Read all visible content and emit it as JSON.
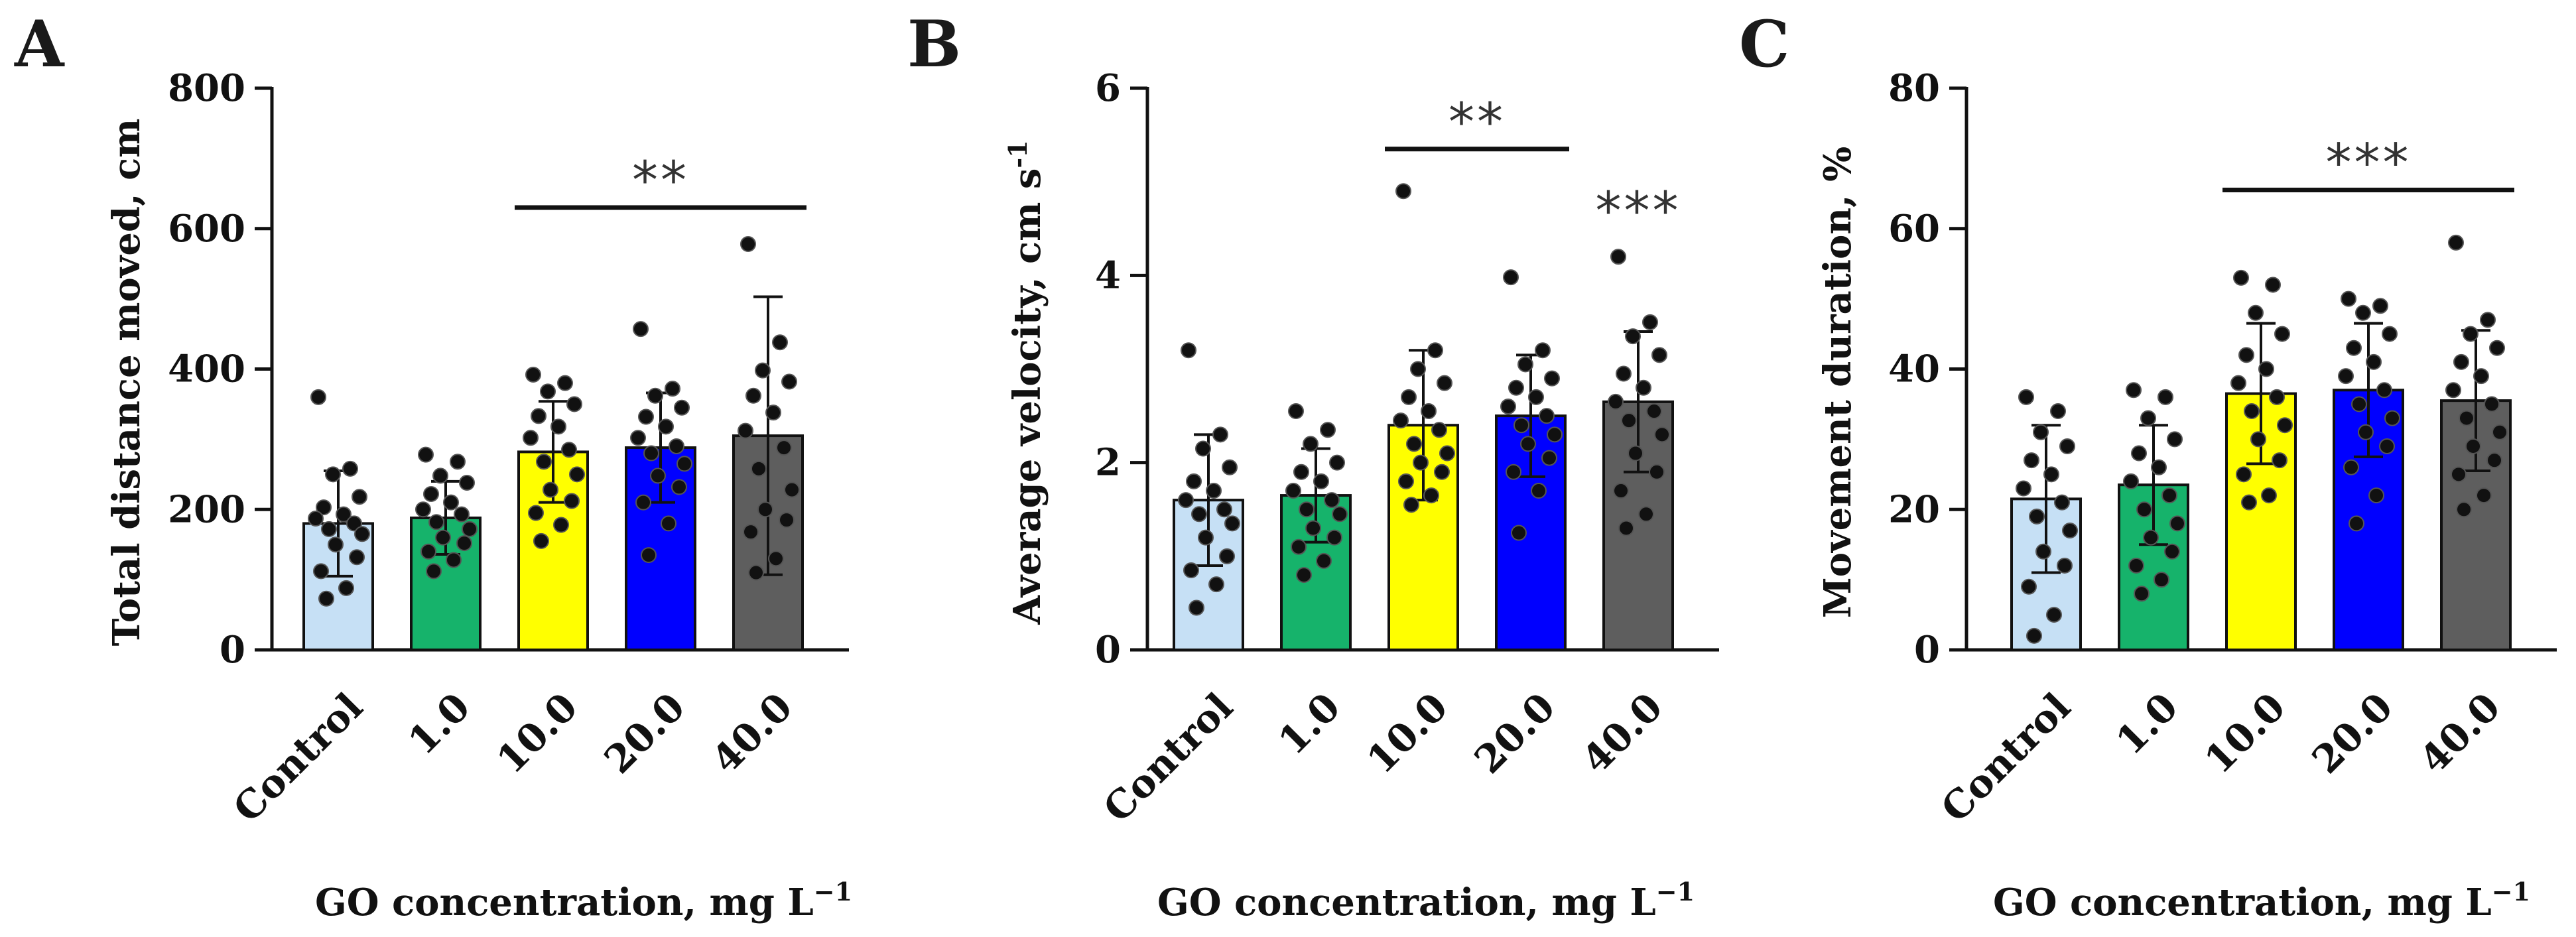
{
  "figure": {
    "xlabel": "GO concentration, mg L",
    "xlabel_sup": "−1"
  },
  "chart_data": [
    {
      "type": "bar",
      "panel": "A",
      "ylabel": "Total distance moved, cm",
      "ylim": [
        0,
        800
      ],
      "yticks": [
        "0",
        "200",
        "400",
        "600",
        "800"
      ],
      "categories": [
        "Control",
        "1.0",
        "10.0",
        "20.0",
        "40.0"
      ],
      "colors": [
        "#c6e0f5",
        "#16b36b",
        "#ffff00",
        "#0000ff",
        "#5e5e5e"
      ],
      "values": [
        180,
        188,
        282,
        288,
        305
      ],
      "sd": [
        75,
        52,
        72,
        78,
        198
      ],
      "points": [
        [
          360,
          258,
          250,
          218,
          203,
          193,
          187,
          180,
          172,
          165,
          150,
          132,
          112,
          88,
          73
        ],
        [
          278,
          268,
          248,
          238,
          222,
          210,
          200,
          193,
          182,
          172,
          160,
          152,
          140,
          128,
          112
        ],
        [
          392,
          380,
          368,
          350,
          333,
          318,
          302,
          285,
          268,
          250,
          228,
          212,
          195,
          178,
          155
        ],
        [
          457,
          372,
          362,
          345,
          332,
          318,
          302,
          290,
          280,
          265,
          248,
          232,
          210,
          180,
          135
        ],
        [
          578,
          438,
          398,
          382,
          362,
          338,
          312,
          288,
          258,
          228,
          200,
          185,
          168,
          130,
          110
        ]
      ],
      "significance": {
        "label": "**",
        "from": 2,
        "to": 4,
        "y": 630
      }
    },
    {
      "type": "bar",
      "panel": "B",
      "ylabel": "Average velocity, cm s",
      "ylabel_sup": "-1",
      "ylim": [
        0,
        6
      ],
      "yticks": [
        "0",
        "2",
        "4",
        "6"
      ],
      "categories": [
        "Control",
        "1.0",
        "10.0",
        "20.0",
        "40.0"
      ],
      "colors": [
        "#c6e0f5",
        "#16b36b",
        "#ffff00",
        "#0000ff",
        "#5e5e5e"
      ],
      "values": [
        1.6,
        1.65,
        2.4,
        2.5,
        2.65
      ],
      "sd": [
        0.7,
        0.5,
        0.8,
        0.65,
        0.75
      ],
      "points": [
        [
          3.2,
          2.3,
          2.15,
          1.95,
          1.8,
          1.7,
          1.6,
          1.5,
          1.45,
          1.35,
          1.2,
          1.0,
          0.85,
          0.7,
          0.45
        ],
        [
          2.55,
          2.35,
          2.2,
          2.0,
          1.9,
          1.8,
          1.7,
          1.6,
          1.5,
          1.45,
          1.3,
          1.2,
          1.1,
          0.95,
          0.8
        ],
        [
          4.9,
          3.2,
          3.0,
          2.85,
          2.7,
          2.55,
          2.45,
          2.35,
          2.2,
          2.1,
          2.0,
          1.9,
          1.8,
          1.65,
          1.55
        ],
        [
          3.98,
          3.2,
          3.05,
          2.9,
          2.8,
          2.7,
          2.6,
          2.5,
          2.4,
          2.3,
          2.2,
          2.05,
          1.9,
          1.7,
          1.25
        ],
        [
          4.2,
          3.5,
          3.35,
          3.15,
          2.95,
          2.8,
          2.65,
          2.55,
          2.45,
          2.3,
          2.1,
          1.9,
          1.7,
          1.45,
          1.3
        ]
      ],
      "significance": {
        "label": "**",
        "from": 2,
        "to": 3,
        "y": 5.35
      },
      "annotation": {
        "label": "***",
        "index": 4,
        "y": 4.5
      }
    },
    {
      "type": "bar",
      "panel": "C",
      "ylabel": "Movement duration, %",
      "ylim": [
        0,
        80
      ],
      "yticks": [
        "0",
        "20",
        "40",
        "60",
        "80"
      ],
      "categories": [
        "Control",
        "1.0",
        "10.0",
        "20.0",
        "40.0"
      ],
      "colors": [
        "#c6e0f5",
        "#16b36b",
        "#ffff00",
        "#0000ff",
        "#5e5e5e"
      ],
      "values": [
        21.5,
        23.5,
        36.5,
        37,
        35.5
      ],
      "sd": [
        10.5,
        8.5,
        10,
        9.5,
        10
      ],
      "points": [
        [
          36,
          34,
          31,
          29,
          27,
          25,
          23,
          21,
          19,
          17,
          14,
          12,
          9,
          5,
          2
        ],
        [
          37,
          36,
          33,
          30,
          28,
          26,
          24,
          22,
          20,
          18,
          16,
          14,
          12,
          10,
          8
        ],
        [
          53,
          52,
          48,
          45,
          42,
          40,
          38,
          36,
          34,
          32,
          30,
          27,
          25,
          22,
          21
        ],
        [
          50,
          49,
          48,
          45,
          43,
          41,
          39,
          37,
          35,
          33,
          31,
          29,
          26,
          22,
          18
        ],
        [
          58,
          47,
          45,
          43,
          41,
          39,
          37,
          35,
          33,
          31,
          29,
          27,
          25,
          22,
          20
        ]
      ],
      "significance": {
        "label": "***",
        "from": 2,
        "to": 4,
        "y": 65.5
      }
    }
  ]
}
